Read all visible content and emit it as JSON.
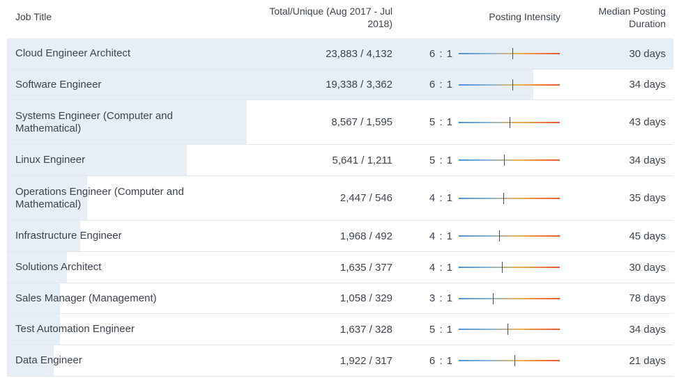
{
  "headers": {
    "job_title": "Job Title",
    "total_unique_line1": "Total/Unique (Aug 2017 - Jul",
    "total_unique_line2": "2018)",
    "posting_intensity": "Posting Intensity",
    "median_line1": "Median Posting",
    "median_line2": "Duration"
  },
  "colors": {
    "row_bar": "#e8eef6",
    "gradient_start": "#4a90d9",
    "gradient_end": "#e8583a"
  },
  "rows": [
    {
      "title": "Cloud Engineer Architect",
      "total": "23,883 / 4,132",
      "ratio": "6 : 1",
      "median": "30 days",
      "unique_share": 1.0,
      "intensity_marker": 0.53
    },
    {
      "title": "Software Engineer",
      "total": "19,338 / 3,362",
      "ratio": "6 : 1",
      "median": "34 days",
      "unique_share": 0.79,
      "intensity_marker": 0.53
    },
    {
      "title": "Systems Engineer (Computer and Mathematical)",
      "total": "8,567 / 1,595",
      "ratio": "5 : 1",
      "median": "43 days",
      "unique_share": 0.36,
      "intensity_marker": 0.5
    },
    {
      "title": "Linux Engineer",
      "total": "5,641 / 1,211",
      "ratio": "5 : 1",
      "median": "34 days",
      "unique_share": 0.27,
      "intensity_marker": 0.45
    },
    {
      "title": "Operations Engineer (Computer and Mathematical)",
      "total": "2,447 / 546",
      "ratio": "4 : 1",
      "median": "35 days",
      "unique_share": 0.12,
      "intensity_marker": 0.44
    },
    {
      "title": "Infrastructure Engineer",
      "total": "1,968 / 492",
      "ratio": "4 : 1",
      "median": "45 days",
      "unique_share": 0.11,
      "intensity_marker": 0.4
    },
    {
      "title": "Solutions Architect",
      "total": "1,635 / 377",
      "ratio": "4 : 1",
      "median": "30 days",
      "unique_share": 0.09,
      "intensity_marker": 0.43
    },
    {
      "title": "Sales Manager (Management)",
      "total": "1,058 / 329",
      "ratio": "3 : 1",
      "median": "78 days",
      "unique_share": 0.08,
      "intensity_marker": 0.34
    },
    {
      "title": "Test Automation Engineer",
      "total": "1,637 / 328",
      "ratio": "5 : 1",
      "median": "34 days",
      "unique_share": 0.08,
      "intensity_marker": 0.48
    },
    {
      "title": "Data Engineer",
      "total": "1,922 / 317",
      "ratio": "6 : 1",
      "median": "21 days",
      "unique_share": 0.07,
      "intensity_marker": 0.55
    }
  ]
}
